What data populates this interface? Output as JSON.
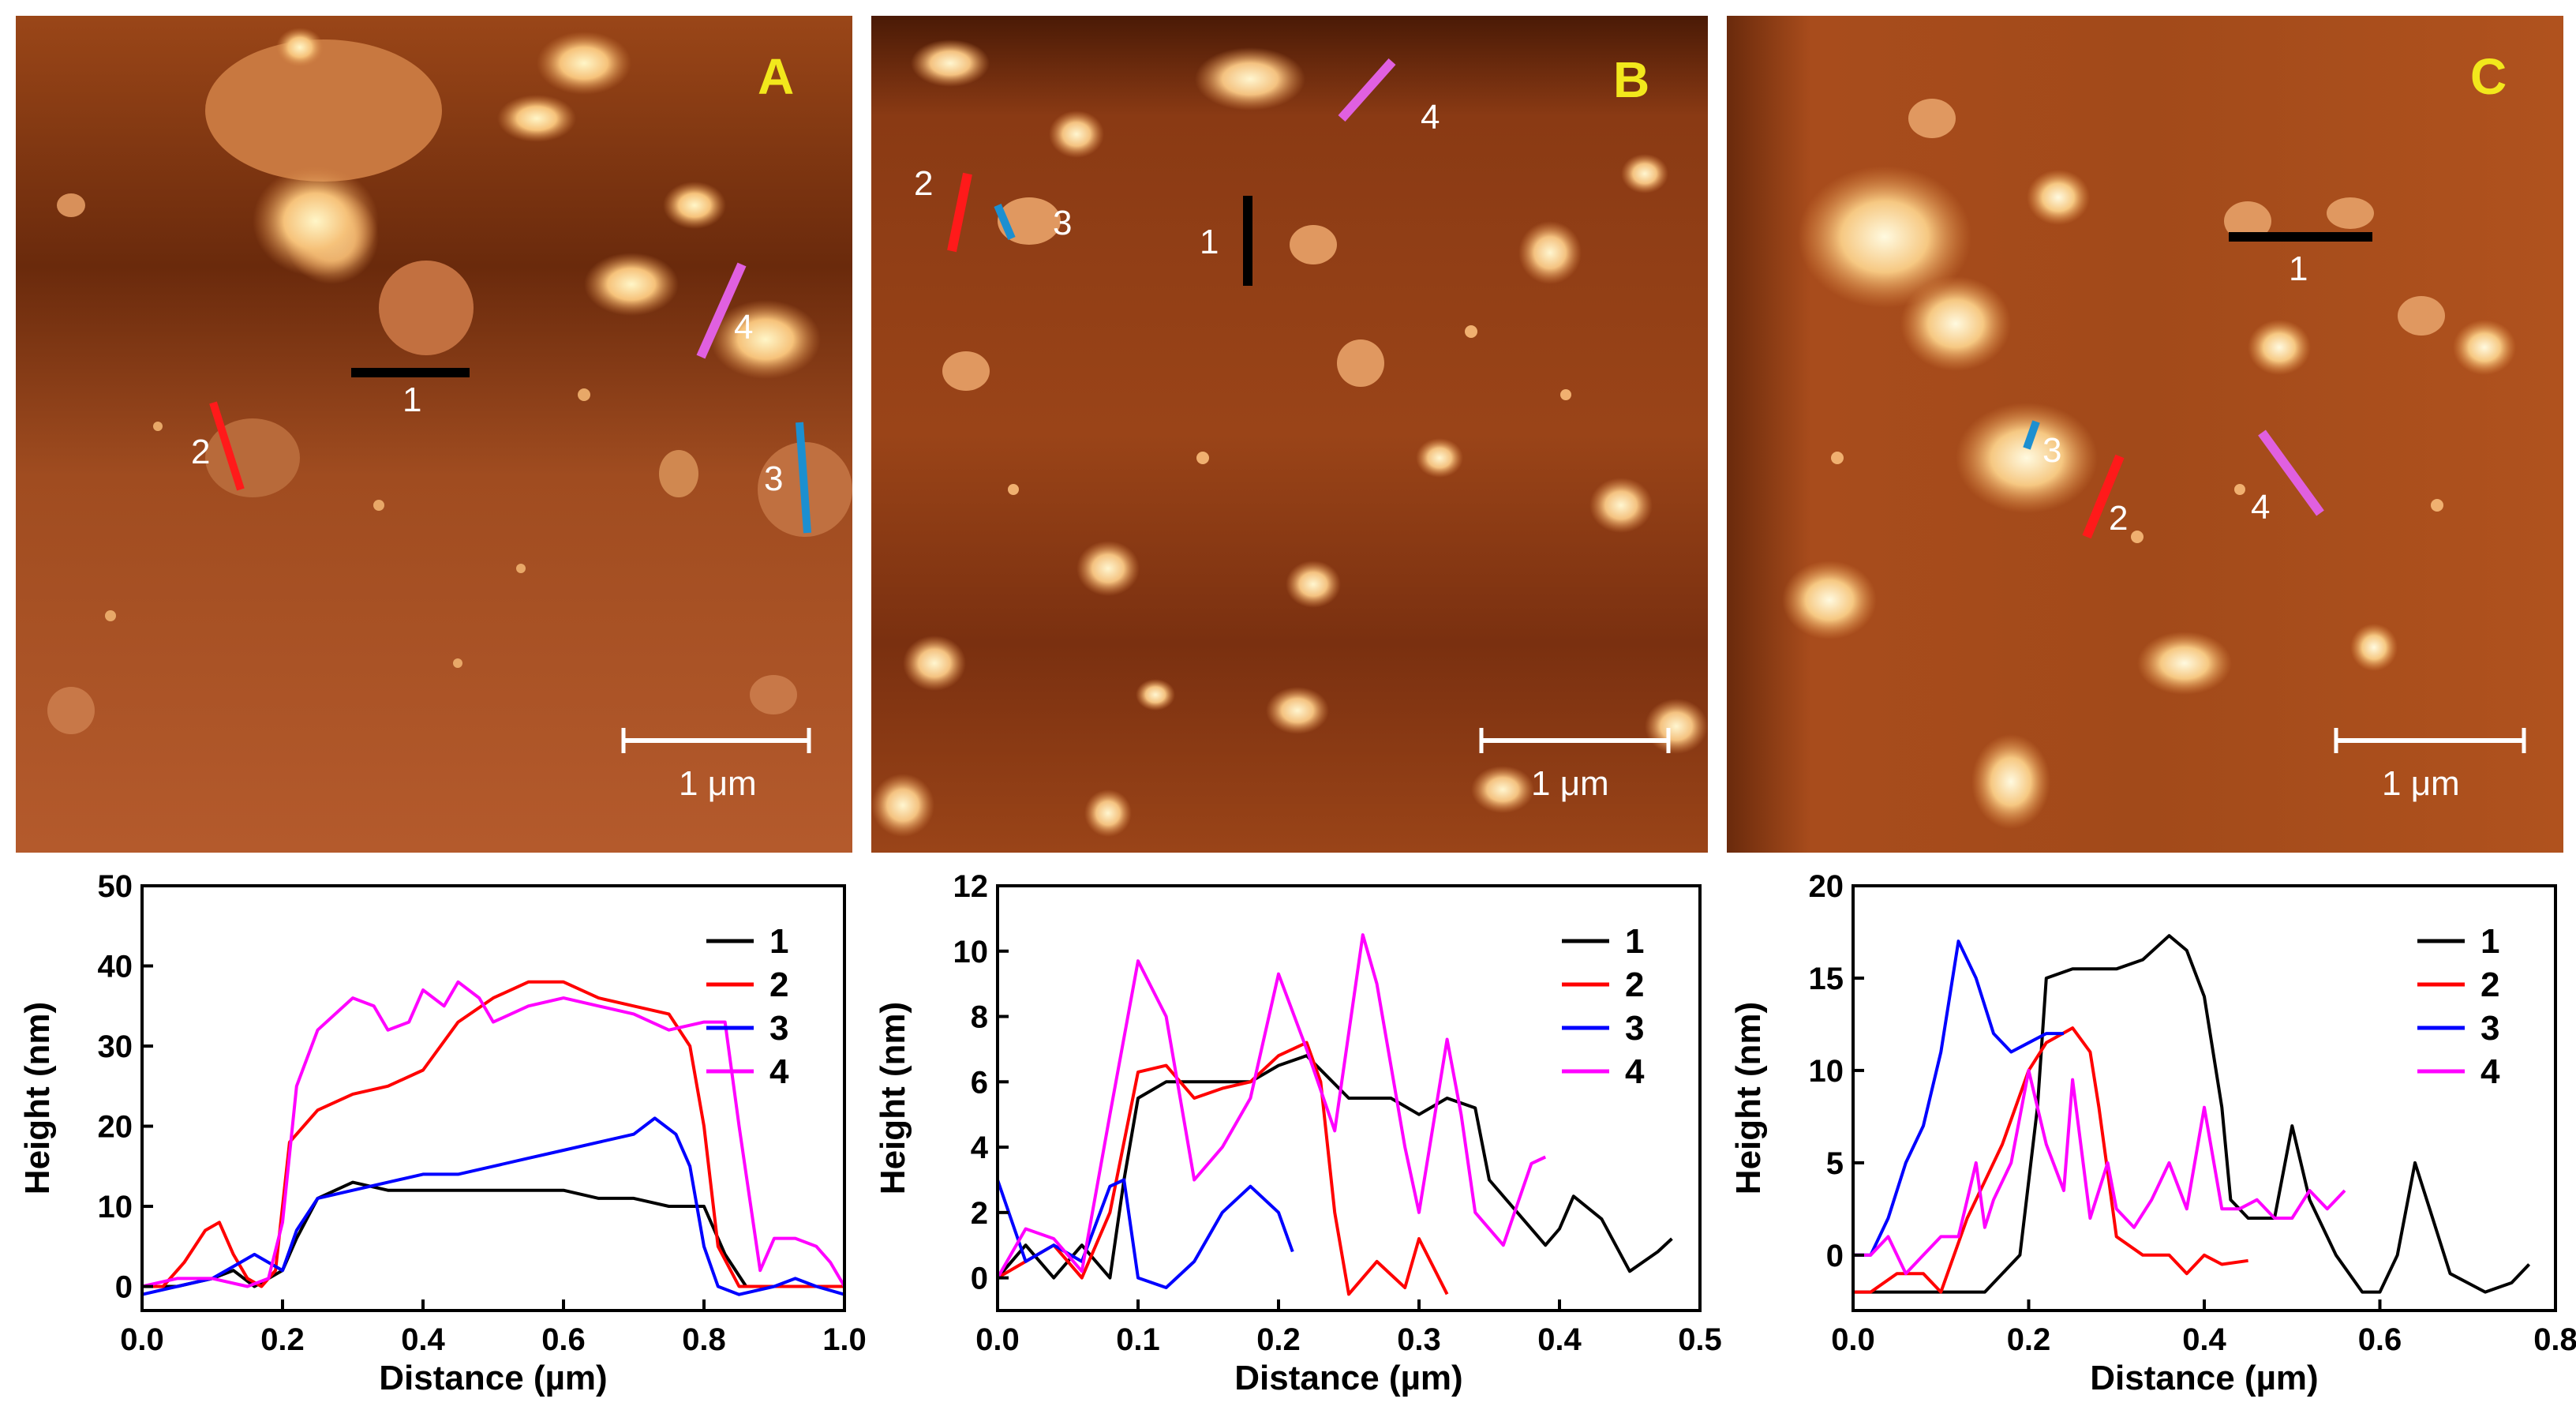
{
  "panels": [
    {
      "letter": "A",
      "scalebar": "1 μm",
      "profile_labels": [
        "1",
        "2",
        "3",
        "4"
      ]
    },
    {
      "letter": "B",
      "scalebar": "1 μm",
      "profile_labels": [
        "1",
        "2",
        "3",
        "4"
      ]
    },
    {
      "letter": "C",
      "scalebar": "1 μm",
      "profile_labels": [
        "1",
        "2",
        "3",
        "4"
      ]
    }
  ],
  "profile_colors": {
    "1": "#000000",
    "2": "#ff0000",
    "3": "#0000ff",
    "4": "#ff00ff"
  },
  "marker_colors": {
    "1": "#000000",
    "2": "#ff1a1a",
    "3": "#1c8fd0",
    "4": "#e060e0"
  },
  "chart_data": [
    {
      "type": "line",
      "panel": "A",
      "xlabel": "Distance (µm)",
      "ylabel": "Height (nm)",
      "xlim": [
        0.0,
        1.0
      ],
      "ylim": [
        -3,
        50
      ],
      "xticks": [
        "0.0",
        "0.2",
        "0.4",
        "0.6",
        "0.8",
        "1.0"
      ],
      "yticks": [
        "0",
        "10",
        "20",
        "30",
        "40",
        "50"
      ],
      "legend": [
        "1",
        "2",
        "3",
        "4"
      ],
      "legend_position": "right",
      "series": [
        {
          "name": "1",
          "x": [
            0,
            0.05,
            0.1,
            0.13,
            0.16,
            0.18,
            0.2,
            0.22,
            0.25,
            0.3,
            0.35,
            0.4,
            0.5,
            0.6,
            0.65,
            0.7,
            0.75,
            0.8,
            0.83,
            0.86,
            0.9,
            0.95,
            1.0
          ],
          "y": [
            0,
            0,
            1,
            2,
            0,
            1,
            2,
            6,
            11,
            13,
            12,
            12,
            12,
            12,
            11,
            11,
            10,
            10,
            4,
            0,
            0,
            0,
            0
          ]
        },
        {
          "name": "2",
          "x": [
            0,
            0.03,
            0.06,
            0.09,
            0.11,
            0.13,
            0.15,
            0.17,
            0.19,
            0.21,
            0.25,
            0.3,
            0.35,
            0.4,
            0.45,
            0.5,
            0.55,
            0.6,
            0.65,
            0.7,
            0.75,
            0.78,
            0.8,
            0.82,
            0.85,
            0.88,
            0.9,
            0.92,
            0.95,
            1.0
          ],
          "y": [
            0,
            0,
            3,
            7,
            8,
            4,
            1,
            0,
            2,
            18,
            22,
            24,
            25,
            27,
            33,
            36,
            38,
            38,
            36,
            35,
            34,
            30,
            20,
            5,
            0,
            0,
            0,
            0,
            0,
            0
          ]
        },
        {
          "name": "3",
          "x": [
            0,
            0.05,
            0.1,
            0.14,
            0.16,
            0.18,
            0.2,
            0.22,
            0.25,
            0.3,
            0.35,
            0.4,
            0.45,
            0.5,
            0.55,
            0.6,
            0.65,
            0.7,
            0.73,
            0.76,
            0.78,
            0.8,
            0.82,
            0.85,
            0.9,
            0.93,
            0.96,
            1.0
          ],
          "y": [
            -1,
            0,
            1,
            3,
            4,
            3,
            2,
            7,
            11,
            12,
            13,
            14,
            14,
            15,
            16,
            17,
            18,
            19,
            21,
            19,
            15,
            5,
            0,
            -1,
            0,
            1,
            0,
            -1
          ]
        },
        {
          "name": "4",
          "x": [
            0,
            0.05,
            0.1,
            0.15,
            0.18,
            0.2,
            0.22,
            0.25,
            0.3,
            0.33,
            0.35,
            0.38,
            0.4,
            0.43,
            0.45,
            0.48,
            0.5,
            0.55,
            0.6,
            0.65,
            0.7,
            0.75,
            0.8,
            0.83,
            0.85,
            0.87,
            0.88,
            0.9,
            0.93,
            0.96,
            0.98,
            1.0
          ],
          "y": [
            0,
            1,
            1,
            0,
            1,
            8,
            25,
            32,
            36,
            35,
            32,
            33,
            37,
            35,
            38,
            36,
            33,
            35,
            36,
            35,
            34,
            32,
            33,
            33,
            20,
            8,
            2,
            6,
            6,
            5,
            3,
            0
          ]
        }
      ]
    },
    {
      "type": "line",
      "panel": "B",
      "xlabel": "Distance (µm)",
      "ylabel": "Height (nm)",
      "xlim": [
        0.0,
        0.5
      ],
      "ylim": [
        -1,
        12
      ],
      "xticks": [
        "0.0",
        "0.1",
        "0.2",
        "0.3",
        "0.4",
        "0.5"
      ],
      "yticks": [
        "0",
        "2",
        "4",
        "6",
        "8",
        "10",
        "12"
      ],
      "legend": [
        "1",
        "2",
        "3",
        "4"
      ],
      "legend_position": "right",
      "series": [
        {
          "name": "1",
          "x": [
            0,
            0.02,
            0.04,
            0.06,
            0.08,
            0.09,
            0.1,
            0.12,
            0.15,
            0.18,
            0.2,
            0.22,
            0.25,
            0.28,
            0.3,
            0.32,
            0.34,
            0.35,
            0.37,
            0.39,
            0.4,
            0.41,
            0.43,
            0.45,
            0.47,
            0.48
          ],
          "y": [
            0,
            1,
            0,
            1,
            0,
            3,
            5.5,
            6,
            6,
            6,
            6.5,
            6.8,
            5.5,
            5.5,
            5,
            5.5,
            5.2,
            3,
            2,
            1,
            1.5,
            2.5,
            1.8,
            0.2,
            0.8,
            1.2
          ]
        },
        {
          "name": "2",
          "x": [
            0,
            0.02,
            0.04,
            0.06,
            0.08,
            0.1,
            0.12,
            0.14,
            0.16,
            0.18,
            0.2,
            0.22,
            0.23,
            0.24,
            0.25,
            0.27,
            0.29,
            0.3,
            0.32
          ],
          "y": [
            0,
            0.5,
            1,
            0,
            2,
            6.3,
            6.5,
            5.5,
            5.8,
            6,
            6.8,
            7.2,
            6,
            2,
            -0.5,
            0.5,
            -0.3,
            1.2,
            -0.5
          ]
        },
        {
          "name": "3",
          "x": [
            0,
            0.02,
            0.04,
            0.06,
            0.08,
            0.09,
            0.1,
            0.12,
            0.14,
            0.16,
            0.18,
            0.2,
            0.21
          ],
          "y": [
            3,
            0.5,
            1,
            0.5,
            2.8,
            3,
            0,
            -0.3,
            0.5,
            2,
            2.8,
            2,
            0.8
          ]
        },
        {
          "name": "4",
          "x": [
            0,
            0.02,
            0.04,
            0.06,
            0.08,
            0.1,
            0.12,
            0.14,
            0.16,
            0.18,
            0.2,
            0.22,
            0.24,
            0.26,
            0.27,
            0.29,
            0.3,
            0.32,
            0.33,
            0.34,
            0.36,
            0.38,
            0.39
          ],
          "y": [
            0,
            1.5,
            1.2,
            0.2,
            5,
            9.7,
            8,
            3,
            4,
            5.5,
            9.3,
            7,
            4.5,
            10.5,
            9,
            4,
            2,
            7.3,
            5,
            2,
            1,
            3.5,
            3.7
          ]
        }
      ]
    },
    {
      "type": "line",
      "panel": "C",
      "xlabel": "Distance (µm)",
      "ylabel": "Height (nm)",
      "xlim": [
        0.0,
        0.8
      ],
      "ylim": [
        -3,
        20
      ],
      "xticks": [
        "0.0",
        "0.2",
        "0.4",
        "0.6",
        "0.8"
      ],
      "yticks": [
        "0",
        "5",
        "10",
        "15",
        "20"
      ],
      "legend": [
        "1",
        "2",
        "3",
        "4"
      ],
      "legend_position": "right",
      "series": [
        {
          "name": "1",
          "x": [
            0,
            0.05,
            0.1,
            0.15,
            0.19,
            0.21,
            0.22,
            0.25,
            0.3,
            0.33,
            0.36,
            0.38,
            0.4,
            0.42,
            0.43,
            0.45,
            0.48,
            0.5,
            0.52,
            0.55,
            0.58,
            0.6,
            0.62,
            0.64,
            0.66,
            0.68,
            0.7,
            0.72,
            0.75,
            0.77
          ],
          "y": [
            -2,
            -2,
            -2,
            -2,
            0,
            8,
            15,
            15.5,
            15.5,
            16,
            17.3,
            16.5,
            14,
            8,
            3,
            2,
            2,
            7,
            3,
            0,
            -2,
            -2,
            0,
            5,
            2,
            -1,
            -1.5,
            -2,
            -1.5,
            -0.5
          ]
        },
        {
          "name": "2",
          "x": [
            0,
            0.02,
            0.05,
            0.08,
            0.1,
            0.13,
            0.15,
            0.17,
            0.2,
            0.22,
            0.25,
            0.27,
            0.28,
            0.3,
            0.33,
            0.36,
            0.38,
            0.4,
            0.42,
            0.45
          ],
          "y": [
            -2,
            -2,
            -1,
            -1,
            -2,
            2,
            4,
            6,
            10,
            11.5,
            12.3,
            11,
            8,
            1,
            0,
            0,
            -1,
            0,
            -0.5,
            -0.3
          ]
        },
        {
          "name": "3",
          "x": [
            0,
            0.02,
            0.04,
            0.06,
            0.08,
            0.1,
            0.12,
            0.14,
            0.16,
            0.18,
            0.2,
            0.22,
            0.24
          ],
          "y": [
            0,
            0,
            2,
            5,
            7,
            11,
            17,
            15,
            12,
            11,
            11.5,
            12,
            12
          ]
        },
        {
          "name": "4",
          "x": [
            0,
            0.02,
            0.04,
            0.06,
            0.08,
            0.1,
            0.12,
            0.14,
            0.15,
            0.16,
            0.18,
            0.2,
            0.22,
            0.24,
            0.25,
            0.27,
            0.29,
            0.3,
            0.32,
            0.34,
            0.36,
            0.38,
            0.4,
            0.42,
            0.44,
            0.46,
            0.48,
            0.5,
            0.52,
            0.54,
            0.56
          ],
          "y": [
            0,
            0,
            1,
            -1,
            0,
            1,
            1,
            5,
            1.5,
            3,
            5,
            10,
            6,
            3.5,
            9.5,
            2,
            5,
            2.5,
            1.5,
            3,
            5,
            2.5,
            8,
            2.5,
            2.5,
            3,
            2,
            2,
            3.5,
            2.5,
            3.5
          ]
        }
      ]
    }
  ]
}
